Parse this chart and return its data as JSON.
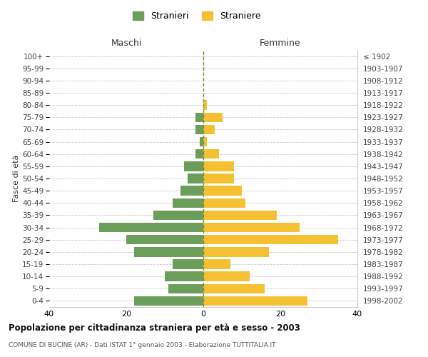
{
  "age_groups_bottom_to_top": [
    "0-4",
    "5-9",
    "10-14",
    "15-19",
    "20-24",
    "25-29",
    "30-34",
    "35-39",
    "40-44",
    "45-49",
    "50-54",
    "55-59",
    "60-64",
    "65-69",
    "70-74",
    "75-79",
    "80-84",
    "85-89",
    "90-94",
    "95-99",
    "100+"
  ],
  "birth_years_bottom_to_top": [
    "1998-2002",
    "1993-1997",
    "1988-1992",
    "1983-1987",
    "1978-1982",
    "1973-1977",
    "1968-1972",
    "1963-1967",
    "1958-1962",
    "1953-1957",
    "1948-1952",
    "1943-1947",
    "1938-1942",
    "1933-1937",
    "1928-1932",
    "1923-1927",
    "1918-1922",
    "1913-1917",
    "1908-1912",
    "1903-1907",
    "≤ 1902"
  ],
  "maschi_bottom_to_top": [
    18,
    9,
    10,
    8,
    18,
    20,
    27,
    13,
    8,
    6,
    4,
    5,
    2,
    1,
    2,
    2,
    0,
    0,
    0,
    0,
    0
  ],
  "femmine_bottom_to_top": [
    27,
    16,
    12,
    7,
    17,
    35,
    25,
    19,
    11,
    10,
    8,
    8,
    4,
    1,
    3,
    5,
    1,
    0,
    0,
    0,
    0
  ],
  "color_maschi": "#6a9e5a",
  "color_femmine": "#f5c132",
  "background_color": "#ffffff",
  "grid_color": "#cccccc",
  "title": "Popolazione per cittadinanza straniera per età e sesso - 2003",
  "subtitle": "COMUNE DI BUCINE (AR) - Dati ISTAT 1° gennaio 2003 - Elaborazione TUTTITALIA.IT",
  "ylabel_left": "Fasce di età",
  "label_maschi": "Stranieri",
  "label_femmine": "Straniere",
  "header_maschi": "Maschi",
  "header_femmine": "Femmine",
  "xlim": 40,
  "bar_height": 0.78
}
